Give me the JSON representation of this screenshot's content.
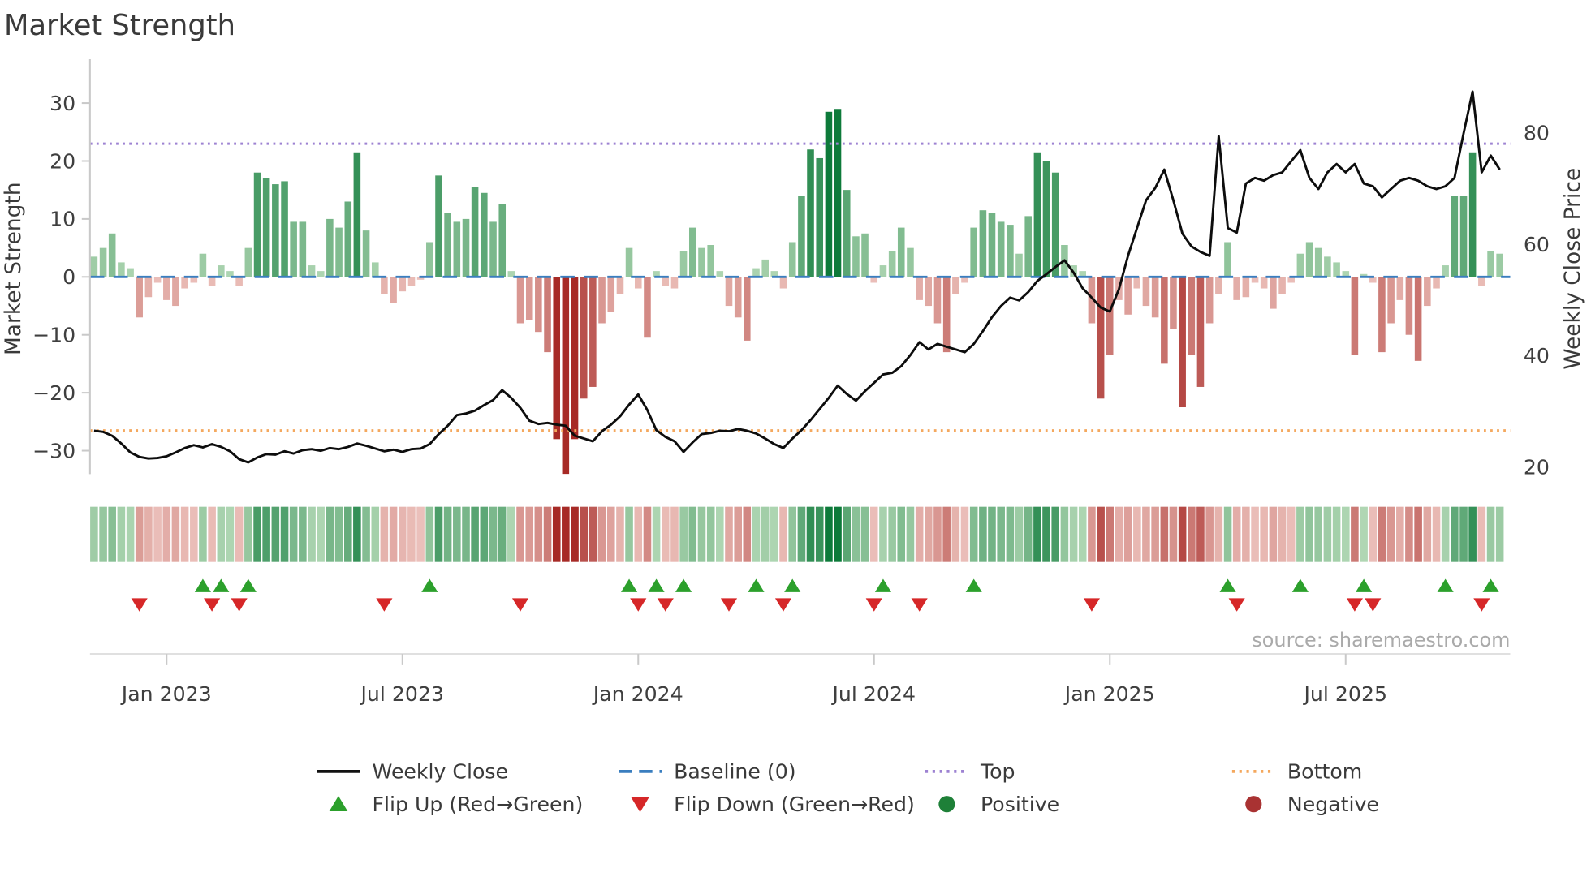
{
  "title": "Market Strength",
  "source": "source: sharemaestro.com",
  "axes": {
    "left": {
      "label": "Market Strength",
      "ticks": [
        "30",
        "20",
        "10",
        "0",
        "−10",
        "−20",
        "−30"
      ],
      "tick_values": [
        30,
        20,
        10,
        0,
        -10,
        -20,
        -30
      ]
    },
    "right": {
      "label": "Weekly Close Price",
      "ticks": [
        "80",
        "60",
        "40",
        "20"
      ],
      "tick_values": [
        80,
        60,
        40,
        20
      ]
    },
    "x": {
      "ticks": [
        {
          "label": "Jan 2023",
          "week": 8
        },
        {
          "label": "Jul 2023",
          "week": 34
        },
        {
          "label": "Jan 2024",
          "week": 60
        },
        {
          "label": "Jul 2024",
          "week": 86
        },
        {
          "label": "Jan 2025",
          "week": 112
        },
        {
          "label": "Jul 2025",
          "week": 138
        }
      ]
    }
  },
  "legend": {
    "row1": [
      {
        "label": "Weekly Close",
        "glyph": "line-solid",
        "color": "#111111"
      },
      {
        "label": "Baseline (0)",
        "glyph": "line-dashed",
        "color": "#3a7ebf"
      },
      {
        "label": "Top",
        "glyph": "line-dotted",
        "color": "#9d82d2"
      },
      {
        "label": "Bottom",
        "glyph": "line-dotted",
        "color": "#f4a85e"
      }
    ],
    "row2": [
      {
        "label": "Flip Up (Red→Green)",
        "glyph": "triangle-up",
        "color": "#2ca02c"
      },
      {
        "label": "Flip Down (Green→Red)",
        "glyph": "triangle-down",
        "color": "#d62728"
      },
      {
        "label": "Positive",
        "glyph": "circle",
        "color": "#1e8038"
      },
      {
        "label": "Negative",
        "glyph": "circle",
        "color": "#a93232"
      }
    ]
  },
  "colors": {
    "price_line": "#0d0d0d",
    "baseline": "#3a7ebf",
    "top_line": "#9d82d2",
    "bottom_line": "#f4a85e",
    "flip_up": "#2ca02c",
    "flip_down": "#d62728",
    "axis_text": "#3f3f3f",
    "spine": "#c9c9c9"
  },
  "chart_data": {
    "type": "bar+line combo with heatmap strip and flip markers",
    "x_unit": "week",
    "n_weeks": 156,
    "baseline": 0,
    "top_threshold": 23,
    "bottom_threshold": -26.5,
    "ylim_left": [
      -36,
      34
    ],
    "ylim_right_price": [
      18,
      92
    ],
    "legend_position": "bottom center, two rows",
    "grid": false,
    "flip_rule": "up marker when strength flips negative→positive; down marker when positive→negative",
    "strength": [
      3.5,
      5,
      7.5,
      2.5,
      1.5,
      -7,
      -3.5,
      -1,
      -4,
      -5,
      -2,
      -1,
      4,
      -1.5,
      2,
      1,
      -1.5,
      5,
      18,
      17,
      16,
      16.5,
      9.5,
      9.5,
      2,
      1,
      10,
      8.5,
      13,
      21.5,
      8,
      2.5,
      -3,
      -4.5,
      -2.5,
      -1.5,
      -0.5,
      6,
      17.5,
      11,
      9.5,
      10,
      15.5,
      14.5,
      9.5,
      12.5,
      1,
      -8,
      -7.5,
      -9.5,
      -13,
      -28,
      -34,
      -28,
      -21,
      -19,
      -8,
      -6,
      -3,
      5,
      -2,
      -10.5,
      1,
      -1.5,
      -2,
      4.5,
      8.5,
      5,
      5.5,
      1,
      -5,
      -7,
      -11,
      1.5,
      3,
      1,
      -2,
      6,
      14,
      22,
      20.5,
      28.5,
      29,
      15,
      7,
      7.5,
      -1,
      2,
      4.5,
      8.5,
      5,
      -4,
      -5,
      -8,
      -13,
      -3,
      -1,
      8.5,
      11.5,
      11,
      9.5,
      9,
      4,
      10.5,
      21.5,
      20,
      18,
      5.5,
      2,
      1,
      -8,
      -21,
      -13.5,
      -4,
      -6.5,
      -2,
      -5,
      -7,
      -15,
      -9,
      -22.5,
      -13.5,
      -19,
      -8,
      -3,
      6,
      -4,
      -3.5,
      -1,
      -2,
      -5.5,
      -3,
      -1,
      4,
      6,
      5,
      3.5,
      2.5,
      1,
      -13.5,
      0.5,
      -1,
      -13,
      -8,
      -4,
      -10,
      -14.5,
      -5,
      -2,
      2,
      14,
      14,
      21.5,
      -1.5,
      4.5,
      4
    ],
    "price": [
      26.5,
      26.3,
      25.6,
      24.2,
      22.6,
      21.8,
      21.5,
      21.6,
      21.9,
      22.6,
      23.4,
      23.9,
      23.5,
      24.1,
      23.6,
      22.8,
      21.4,
      20.8,
      21.7,
      22.3,
      22.2,
      22.8,
      22.4,
      23.0,
      23.2,
      22.9,
      23.4,
      23.2,
      23.6,
      24.2,
      23.8,
      23.3,
      22.8,
      23.1,
      22.7,
      23.2,
      23.3,
      24.1,
      25.9,
      27.4,
      29.3,
      29.6,
      30.1,
      31.1,
      32.0,
      33.8,
      32.4,
      30.6,
      28.3,
      27.7,
      27.9,
      27.6,
      27.4,
      25.6,
      25.1,
      24.6,
      26.4,
      27.6,
      29.1,
      31.2,
      33.0,
      30.2,
      26.6,
      25.4,
      24.6,
      22.7,
      24.4,
      25.9,
      26.1,
      26.5,
      26.4,
      26.8,
      26.5,
      26.0,
      25.1,
      24.1,
      23.4,
      25.1,
      26.6,
      28.4,
      30.4,
      32.4,
      34.6,
      33.1,
      31.9,
      33.6,
      35.1,
      36.6,
      36.9,
      38.1,
      40.1,
      42.4,
      41.1,
      42.1,
      41.6,
      41.1,
      40.6,
      42.1,
      44.4,
      46.9,
      48.9,
      50.4,
      49.9,
      51.4,
      53.4,
      54.6,
      55.9,
      57.1,
      54.9,
      52.1,
      50.4,
      48.6,
      47.9,
      51.9,
      57.9,
      62.9,
      67.9,
      70.1,
      73.4,
      67.9,
      61.9,
      59.6,
      58.6,
      57.9,
      79.4,
      62.9,
      62.1,
      70.9,
      71.9,
      71.4,
      72.4,
      72.9,
      74.9,
      76.9,
      71.9,
      69.9,
      72.9,
      74.4,
      72.9,
      74.4,
      70.9,
      70.4,
      68.4,
      69.9,
      71.4,
      71.9,
      71.4,
      70.4,
      69.9,
      70.4,
      71.9,
      79.9,
      87.4,
      72.9,
      75.9,
      73.4
    ]
  }
}
